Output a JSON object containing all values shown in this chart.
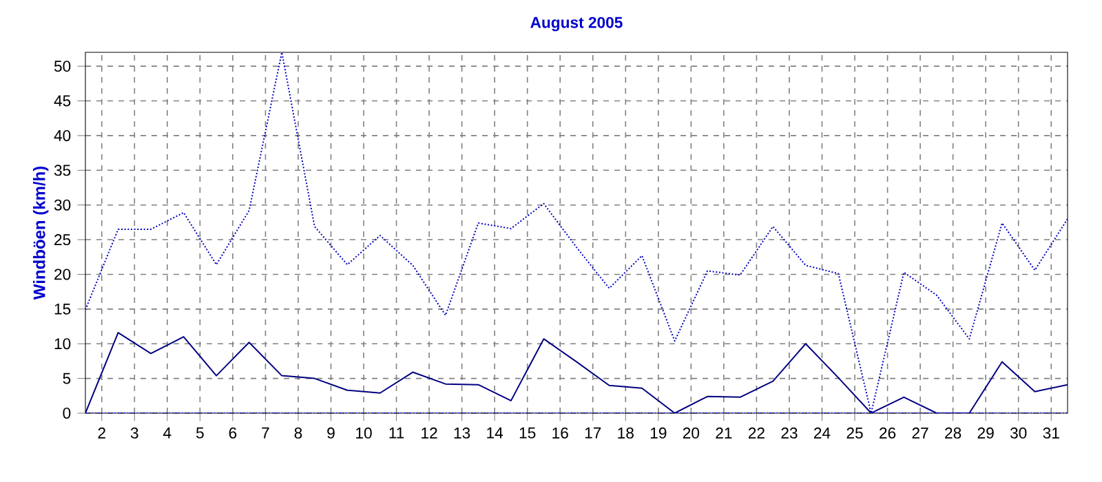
{
  "chart_data": {
    "type": "line",
    "title": "August 2005",
    "ylabel": "Windböen  (km/h)",
    "x": [
      1.5,
      2.5,
      3.5,
      4.5,
      5.5,
      6.5,
      7.5,
      8.5,
      9.5,
      10.5,
      11.5,
      12.5,
      13.5,
      14.5,
      15.5,
      16.5,
      17.5,
      18.5,
      19.5,
      20.5,
      21.5,
      22.5,
      23.5,
      24.5,
      25.5,
      26.5,
      27.5,
      28.5,
      29.5,
      30.5,
      31.5
    ],
    "series": [
      {
        "color": "#0000c0",
        "line_style": "dotted",
        "values": [
          14.9,
          26.5,
          26.5,
          28.9,
          21.4,
          29.2,
          52,
          26.9,
          21.4,
          25.6,
          21.3,
          14.1,
          27.4,
          26.6,
          30.2,
          23.9,
          18.0,
          22.7,
          10.4,
          20.5,
          19.9,
          26.9,
          21.3,
          20.1,
          0,
          20.3,
          17.0,
          10.7,
          27.4,
          20.6,
          28.0
        ]
      },
      {
        "color": "#000080",
        "line_style": "solid",
        "values": [
          0,
          11.6,
          8.6,
          11.0,
          5.4,
          10.2,
          5.4,
          5.0,
          3.3,
          2.9,
          5.9,
          4.2,
          4.1,
          1.8,
          10.7,
          7.4,
          4.0,
          3.6,
          0,
          2.4,
          2.3,
          4.6,
          10.0,
          5.1,
          0,
          2.3,
          0,
          0,
          7.4,
          3.1,
          4.1
        ]
      },
      {
        "color": "#0000ff",
        "line_style": "dotted",
        "values": [
          0,
          0,
          0,
          0,
          0,
          0,
          0,
          0,
          0,
          0,
          0,
          0,
          0,
          0,
          0,
          0,
          0,
          0,
          0,
          0,
          0,
          0,
          0,
          0,
          0,
          0,
          0,
          0,
          0,
          0,
          0
        ]
      }
    ],
    "xlim": [
      1.5,
      31.5
    ],
    "ylim": [
      0,
      52
    ],
    "xticks": [
      2,
      3,
      4,
      5,
      6,
      7,
      8,
      9,
      10,
      11,
      12,
      13,
      14,
      15,
      16,
      17,
      18,
      19,
      20,
      21,
      22,
      23,
      24,
      25,
      26,
      27,
      28,
      29,
      30,
      31
    ],
    "yticks": [
      0,
      5,
      10,
      15,
      20,
      25,
      30,
      35,
      40,
      45,
      50
    ],
    "grid": true
  }
}
